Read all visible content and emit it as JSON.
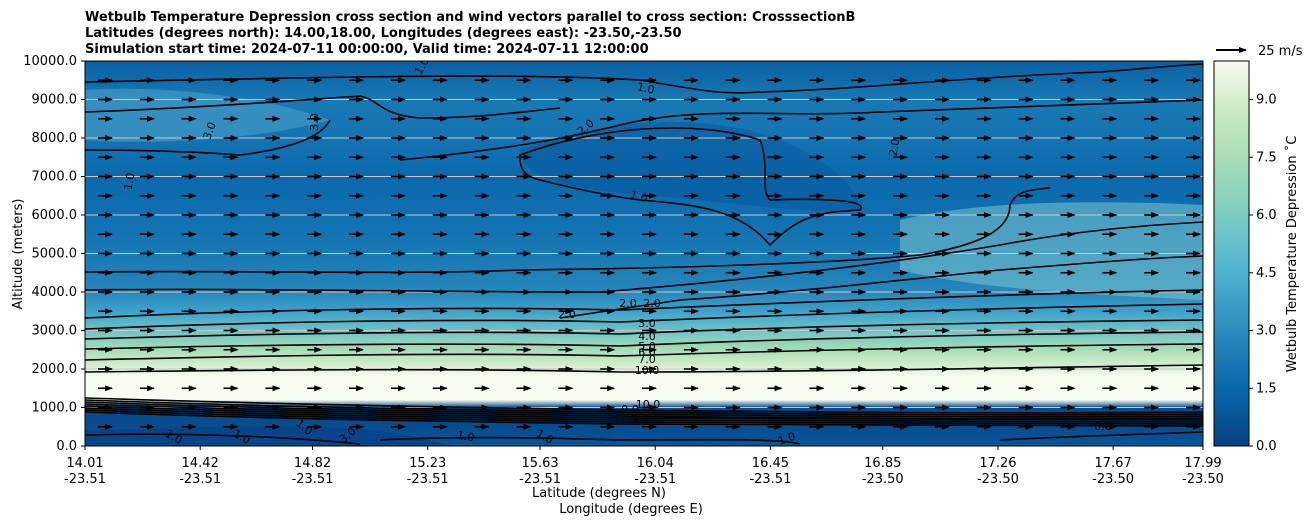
{
  "chart_data": {
    "type": "heatmap",
    "title_lines": [
      "Wetbulb Temperature Depression cross section and wind vectors parallel to cross section: CrosssectionB",
      "Latitudes (degrees north): 14.00,18.00, Longitudes (degrees east): -23.50,-23.50",
      "Simulation start time: 2024-07-11 00:00:00, Valid time: 2024-07-11 12:00:00"
    ],
    "ylabel": "Altitude (meters)",
    "xlabel_lat": "Latitude (degrees N)",
    "xlabel_lon": "Longitude (degrees E)",
    "ylim": [
      0,
      10000
    ],
    "y_ticks": [
      "0.0",
      "1000.0",
      "2000.0",
      "3000.0",
      "4000.0",
      "5000.0",
      "6000.0",
      "7000.0",
      "8000.0",
      "9000.0",
      "10000.0"
    ],
    "y_tick_values": [
      0,
      1000,
      2000,
      3000,
      4000,
      5000,
      6000,
      7000,
      8000,
      9000,
      10000
    ],
    "x_ticks": [
      {
        "lat": "14.01",
        "lon": "-23.51"
      },
      {
        "lat": "14.42",
        "lon": "-23.51"
      },
      {
        "lat": "14.82",
        "lon": "-23.51"
      },
      {
        "lat": "15.23",
        "lon": "-23.51"
      },
      {
        "lat": "15.63",
        "lon": "-23.51"
      },
      {
        "lat": "16.04",
        "lon": "-23.51"
      },
      {
        "lat": "16.45",
        "lon": "-23.51"
      },
      {
        "lat": "16.85",
        "lon": "-23.50"
      },
      {
        "lat": "17.26",
        "lon": "-23.50"
      },
      {
        "lat": "17.67",
        "lon": "-23.50"
      },
      {
        "lat": "17.99",
        "lon": "-23.50"
      }
    ],
    "x_tick_lat_values": [
      14.01,
      14.42,
      14.82,
      15.23,
      15.63,
      16.04,
      16.45,
      16.85,
      17.26,
      17.67,
      17.99
    ],
    "xlim": [
      14.01,
      17.99
    ],
    "grid": "horizontal",
    "colorbar": {
      "label": "Wetbulb Temperature Depression ˚C",
      "min": 0,
      "max": 10,
      "ticks": [
        "0.0",
        "1.5",
        "3.0",
        "4.5",
        "6.0",
        "7.5",
        "9.0"
      ],
      "tick_values": [
        0,
        1.5,
        3.0,
        4.5,
        6.0,
        7.5,
        9.0
      ],
      "colormap": "GnBu_r",
      "levels": 20
    },
    "wind_key": {
      "label": "25 m/s",
      "speed": 25
    },
    "profile_altitudes": [
      0,
      500,
      800,
      1000,
      1200,
      1500,
      1800,
      2100,
      2500,
      3000,
      3500,
      4000,
      5000,
      6000,
      7000,
      8000,
      9000,
      10000
    ],
    "profile_values": [
      0.8,
      0.5,
      0.4,
      0.5,
      10,
      10,
      10,
      9.0,
      7.5,
      5.5,
      3.8,
      2.8,
      2.2,
      1.8,
      1.6,
      2.0,
      2.2,
      1.2
    ],
    "contour_labels": [
      "1.0",
      "1.0",
      "3.0",
      "3.0",
      "2.0",
      "2.0",
      "1.0",
      "1.0",
      "2.0",
      "2.0",
      "2.0",
      "3.0",
      "4.0",
      "5.0",
      "6.0",
      "7.0",
      "10.0",
      "10.0",
      "1.0",
      "1.0",
      "1.0",
      "1.0",
      "1.0",
      "1.0",
      "0.0",
      "1.0",
      "3.0",
      "9.0"
    ],
    "wind_rows_altitudes": [
      500,
      1000,
      1500,
      2000,
      2500,
      3000,
      3500,
      4000,
      4500,
      5000,
      5500,
      6000,
      6500,
      7000,
      7500,
      8000,
      8500,
      9000,
      9500
    ],
    "wind_columns": 27,
    "wind_speed_ms": 12
  }
}
